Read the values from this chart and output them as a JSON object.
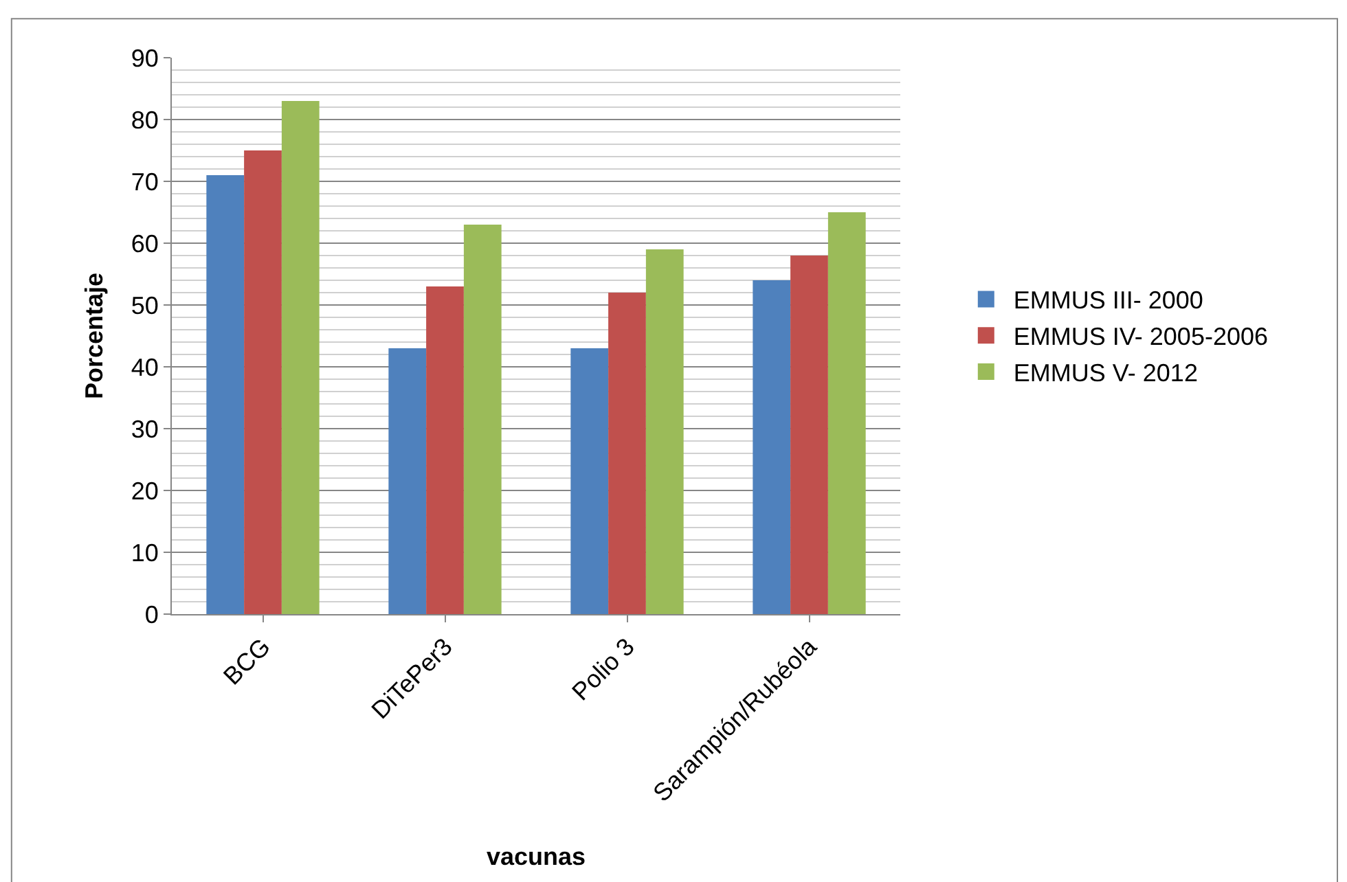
{
  "chart_data": {
    "type": "bar",
    "xlabel": "vacunas",
    "ylabel": "Porcentaje",
    "categories": [
      "BCG",
      "DiTePer3",
      "Polio 3",
      "Sarampión/Rubéola"
    ],
    "series": [
      {
        "name": "EMMUS III- 2000",
        "color": "#4f81bd",
        "values": [
          71,
          43,
          43,
          54
        ]
      },
      {
        "name": "EMMUS IV- 2005-2006",
        "color": "#c0504d",
        "values": [
          75,
          53,
          52,
          58
        ]
      },
      {
        "name": "EMMUS V- 2012",
        "color": "#9bbb59",
        "values": [
          83,
          63,
          59,
          65
        ]
      }
    ],
    "ylim": [
      0,
      90
    ],
    "yticks": [
      0,
      10,
      20,
      30,
      40,
      50,
      60,
      70,
      80,
      90
    ],
    "grid": "y",
    "legend": "right"
  }
}
